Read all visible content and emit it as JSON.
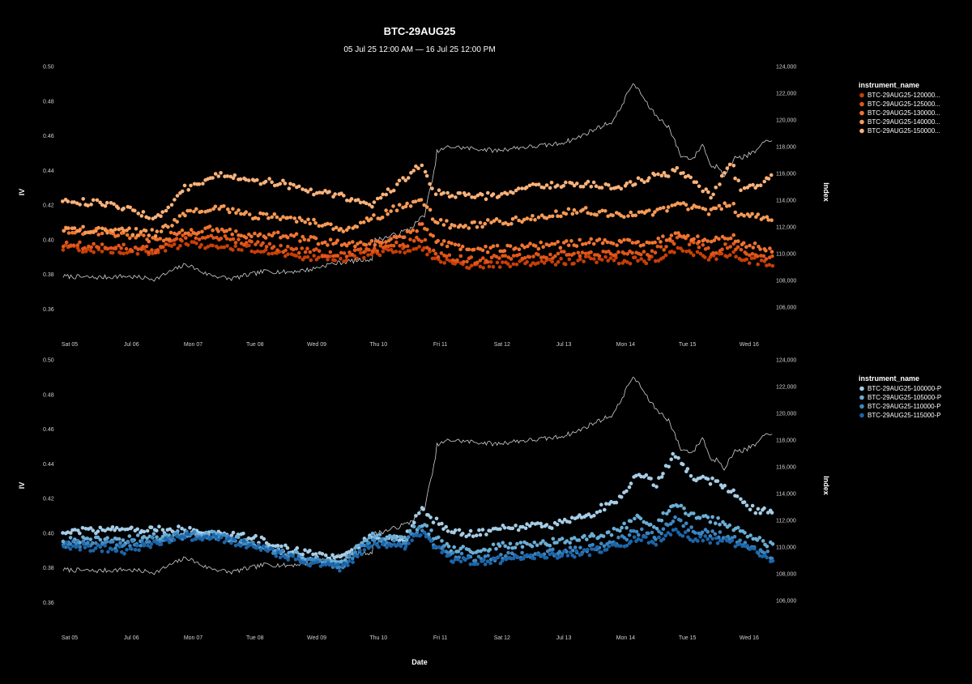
{
  "chart_data": {
    "type": "scatter",
    "title": "BTC-29AUG25",
    "subtitle": "05 Jul 25 12:00 AM — 16 Jul 25 12:00 PM",
    "xlabel": "Date",
    "ylabel_left": "IV",
    "ylabel_right": "Index",
    "x_range": [
      "2025-07-05T00:00",
      "2025-07-16T12:00"
    ],
    "x_ticks": [
      "Sat 05",
      "Jul 06",
      "Mon 07",
      "Tue 08",
      "Wed 09",
      "Thu 10",
      "Fri 11",
      "Sat 12",
      "Jul 13",
      "Mon 14",
      "Tue 15",
      "Wed 16"
    ],
    "y_ticks": [
      "0.50",
      "0.48",
      "0.46",
      "0.44",
      "0.42",
      "0.40",
      "0.38",
      "0.36"
    ],
    "ylim": [
      0.355,
      0.5
    ],
    "y2_ticks": [
      "124,000",
      "122,000",
      "120,000",
      "118,000",
      "116,000",
      "114,000",
      "112,000",
      "110,000",
      "108,000",
      "106,000"
    ],
    "y2lim": [
      105200,
      124000
    ],
    "legend_position": "right",
    "index_line": {
      "color": "#d0d0d0",
      "x_days": [
        0,
        0.5,
        1,
        1.5,
        1.8,
        2,
        2.3,
        2.7,
        3,
        3.3,
        3.6,
        4,
        4.3,
        4.6,
        5,
        5.05,
        5.3,
        5.6,
        5.85,
        6,
        6.05,
        6.25,
        6.5,
        6.8,
        7,
        7.3,
        7.6,
        8,
        8.3,
        8.6,
        8.9,
        9,
        9.2,
        9.3,
        9.45,
        9.6,
        9.8,
        10,
        10.2,
        10.35,
        10.5,
        10.6,
        10.7,
        10.9,
        11,
        11.2,
        11.4,
        11.5
      ],
      "values": [
        108300,
        108200,
        108300,
        108100,
        108800,
        109200,
        108500,
        108100,
        108400,
        108700,
        108600,
        108800,
        109200,
        109400,
        109600,
        111000,
        111300,
        111800,
        112900,
        116000,
        117600,
        118000,
        117900,
        117800,
        117700,
        117900,
        118000,
        118200,
        118600,
        119300,
        119900,
        120700,
        122600,
        122400,
        121200,
        120300,
        119500,
        117300,
        117100,
        118200,
        116400,
        116600,
        115900,
        117300,
        117200,
        117600,
        118500,
        118600
      ]
    },
    "panels": [
      {
        "legend_title": "instrument_name",
        "series": [
          {
            "name": "BTC-29AUG25-120000...",
            "color": "#c73f07",
            "x_days": [
              0,
              0.8,
              1.5,
              2,
              2.5,
              3,
              3.5,
              4,
              4.5,
              5,
              5.5,
              5.8,
              6,
              6.3,
              6.8,
              7,
              7.5,
              8,
              8.5,
              9,
              9.5,
              10,
              10.5,
              10.8,
              11,
              11.5
            ],
            "values": [
              0.395,
              0.394,
              0.393,
              0.398,
              0.396,
              0.395,
              0.392,
              0.39,
              0.389,
              0.392,
              0.394,
              0.395,
              0.39,
              0.386,
              0.385,
              0.386,
              0.387,
              0.387,
              0.389,
              0.388,
              0.388,
              0.395,
              0.389,
              0.392,
              0.389,
              0.386
            ]
          },
          {
            "name": "BTC-29AUG25-125000...",
            "color": "#e0561a",
            "x_days": [
              0,
              0.8,
              1.5,
              2,
              2.5,
              3,
              3.5,
              4,
              4.5,
              5,
              5.5,
              5.8,
              6,
              6.3,
              6.8,
              7,
              7.5,
              8,
              8.5,
              9,
              9.5,
              10,
              10.5,
              10.8,
              11,
              11.5
            ],
            "values": [
              0.397,
              0.396,
              0.394,
              0.402,
              0.401,
              0.398,
              0.395,
              0.393,
              0.391,
              0.395,
              0.397,
              0.401,
              0.393,
              0.389,
              0.388,
              0.389,
              0.39,
              0.391,
              0.392,
              0.391,
              0.392,
              0.401,
              0.393,
              0.397,
              0.393,
              0.389
            ]
          },
          {
            "name": "BTC-29AUG25-130000...",
            "color": "#f07430",
            "x_days": [
              0,
              0.8,
              1.5,
              2,
              2.5,
              3,
              3.5,
              4,
              4.5,
              5,
              5.5,
              5.8,
              6,
              6.3,
              6.8,
              7,
              7.5,
              8,
              8.5,
              9,
              9.5,
              10,
              10.5,
              10.8,
              11,
              11.5
            ],
            "values": [
              0.406,
              0.404,
              0.4,
              0.405,
              0.406,
              0.402,
              0.403,
              0.4,
              0.398,
              0.398,
              0.402,
              0.408,
              0.4,
              0.396,
              0.394,
              0.395,
              0.396,
              0.397,
              0.399,
              0.398,
              0.398,
              0.403,
              0.399,
              0.402,
              0.398,
              0.393
            ]
          },
          {
            "name": "BTC-29AUG25-140000...",
            "color": "#f79a56",
            "x_days": [
              0,
              0.8,
              1.5,
              2,
              2.5,
              3,
              3.5,
              4,
              4.5,
              5,
              5.5,
              5.8,
              6,
              6.3,
              6.8,
              7,
              7.5,
              8,
              8.5,
              9,
              9.5,
              10,
              10.5,
              10.8,
              11,
              11.5
            ],
            "values": [
              0.406,
              0.405,
              0.404,
              0.416,
              0.419,
              0.414,
              0.413,
              0.41,
              0.406,
              0.412,
              0.42,
              0.423,
              0.412,
              0.408,
              0.409,
              0.41,
              0.412,
              0.415,
              0.417,
              0.414,
              0.415,
              0.42,
              0.416,
              0.421,
              0.413,
              0.413
            ]
          },
          {
            "name": "BTC-29AUG25-150000...",
            "color": "#fbb27a",
            "x_days": [
              0,
              0.8,
              1.5,
              2,
              2.5,
              3,
              3.5,
              4,
              4.5,
              5,
              5.5,
              5.8,
              6,
              6.3,
              6.8,
              7,
              7.5,
              8,
              8.5,
              9,
              9.5,
              10,
              10.5,
              10.8,
              11,
              11.5
            ],
            "values": [
              0.423,
              0.42,
              0.413,
              0.43,
              0.438,
              0.434,
              0.433,
              0.428,
              0.425,
              0.42,
              0.434,
              0.444,
              0.428,
              0.426,
              0.425,
              0.426,
              0.43,
              0.432,
              0.432,
              0.43,
              0.436,
              0.44,
              0.425,
              0.445,
              0.428,
              0.437
            ]
          }
        ]
      },
      {
        "legend_title": "instrument_name",
        "series": [
          {
            "name": "BTC-29AUG25-100000-P",
            "color": "#a6cde6",
            "x_days": [
              0,
              1,
              2,
              2.5,
              3,
              3.5,
              4,
              4.5,
              5,
              5.5,
              5.8,
              6,
              6.3,
              6.8,
              7,
              7.5,
              8,
              8.5,
              9,
              9.3,
              9.6,
              9.9,
              10.2,
              10.5,
              10.8,
              11.2,
              11.5
            ],
            "values": [
              0.401,
              0.402,
              0.402,
              0.4,
              0.398,
              0.392,
              0.388,
              0.385,
              0.398,
              0.396,
              0.413,
              0.408,
              0.4,
              0.4,
              0.403,
              0.404,
              0.405,
              0.41,
              0.42,
              0.435,
              0.428,
              0.445,
              0.432,
              0.43,
              0.425,
              0.413,
              0.412
            ]
          },
          {
            "name": "BTC-29AUG25-105000-P",
            "color": "#6aaed6",
            "x_days": [
              0,
              1,
              2,
              2.5,
              3,
              3.5,
              4,
              4.5,
              5,
              5.5,
              5.8,
              6,
              6.3,
              6.8,
              7,
              7.5,
              8,
              8.5,
              9,
              9.3,
              9.6,
              9.9,
              10.2,
              10.5,
              10.8,
              11.2,
              11.5
            ],
            "values": [
              0.396,
              0.396,
              0.4,
              0.399,
              0.395,
              0.39,
              0.386,
              0.383,
              0.398,
              0.396,
              0.406,
              0.398,
              0.391,
              0.39,
              0.392,
              0.394,
              0.395,
              0.397,
              0.402,
              0.409,
              0.404,
              0.418,
              0.41,
              0.408,
              0.404,
              0.397,
              0.392
            ]
          },
          {
            "name": "BTC-29AUG25-110000-P",
            "color": "#3d86c1",
            "x_days": [
              0,
              1,
              2,
              2.5,
              3,
              3.5,
              4,
              4.5,
              5,
              5.5,
              5.8,
              6,
              6.3,
              6.8,
              7,
              7.5,
              8,
              8.5,
              9,
              9.3,
              9.6,
              9.9,
              10.2,
              10.5,
              10.8,
              11.2,
              11.5
            ],
            "values": [
              0.394,
              0.393,
              0.399,
              0.398,
              0.394,
              0.389,
              0.384,
              0.381,
              0.396,
              0.394,
              0.403,
              0.394,
              0.387,
              0.385,
              0.386,
              0.388,
              0.389,
              0.391,
              0.396,
              0.401,
              0.398,
              0.408,
              0.401,
              0.4,
              0.398,
              0.391,
              0.386
            ]
          },
          {
            "name": "BTC-29AUG25-115000-P",
            "color": "#1c65a8",
            "x_days": [
              0,
              1,
              2,
              2.5,
              3,
              3.5,
              4,
              4.5,
              5,
              5.5,
              5.8,
              6,
              6.3,
              6.8,
              7,
              7.5,
              8,
              8.5,
              9,
              9.3,
              9.6,
              9.9,
              10.2,
              10.5,
              10.8,
              11.2,
              11.5
            ],
            "values": [
              0.393,
              0.39,
              0.398,
              0.397,
              0.393,
              0.388,
              0.383,
              0.38,
              0.394,
              0.392,
              0.4,
              0.392,
              0.385,
              0.383,
              0.384,
              0.386,
              0.387,
              0.389,
              0.393,
              0.397,
              0.395,
              0.402,
              0.397,
              0.396,
              0.395,
              0.389,
              0.383
            ]
          }
        ]
      }
    ]
  }
}
